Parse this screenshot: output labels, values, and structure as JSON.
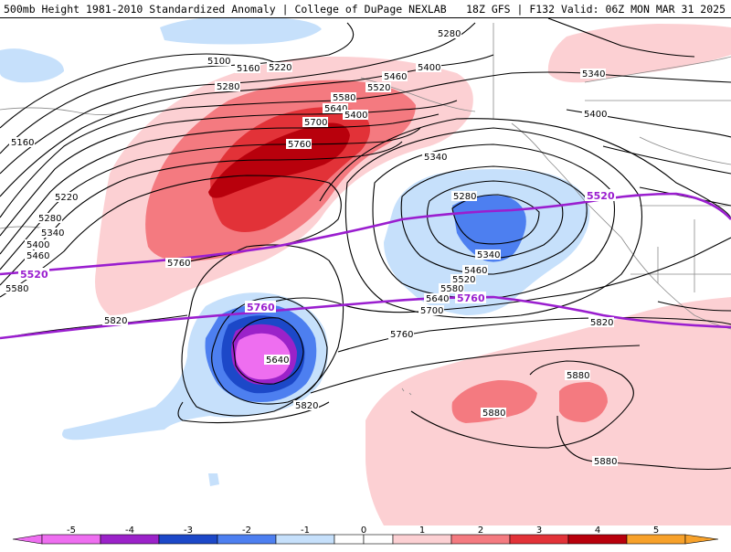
{
  "header": {
    "title": "500mb Height 1981-2010 Standardized Anomaly | College of DuPage NEXLAB",
    "run_info": "18Z GFS | F132 Valid: 06Z MON MAR 31 2025"
  },
  "colors": {
    "anom_-5": "#ee6ef0",
    "anom_-4": "#9b22c9",
    "anom_-3": "#1c48c8",
    "anom_-2": "#4d7ff0",
    "anom_-1": "#c6e0fb",
    "anom_1": "#fcd0d3",
    "anom_2": "#f47a80",
    "anom_3": "#e23238",
    "anom_4": "#b8000c",
    "anom_5": "#f7a12a",
    "reference_contour": "#9a1ecf",
    "height_contour": "#000000"
  },
  "height_labels": [
    "5100",
    "5160",
    "5220",
    "5280",
    "5400",
    "5460",
    "5520",
    "5580",
    "5640",
    "5700",
    "5760",
    "5340",
    "5280",
    "5400",
    "5160",
    "5220",
    "5280",
    "5340",
    "5400",
    "5460",
    "5580",
    "5340",
    "5460",
    "5520",
    "5580",
    "5640",
    "5700",
    "5760",
    "5820",
    "5760",
    "5640",
    "5820",
    "5820",
    "5880",
    "5880",
    "5880",
    "5280",
    "5340",
    "5400"
  ],
  "reference_labels": [
    "5520",
    "5520",
    "5760",
    "5760"
  ],
  "legend": {
    "ticks": [
      "-5",
      "-4",
      "-3",
      "-2",
      "-1",
      "0",
      "1",
      "2",
      "3",
      "4",
      "5"
    ]
  }
}
